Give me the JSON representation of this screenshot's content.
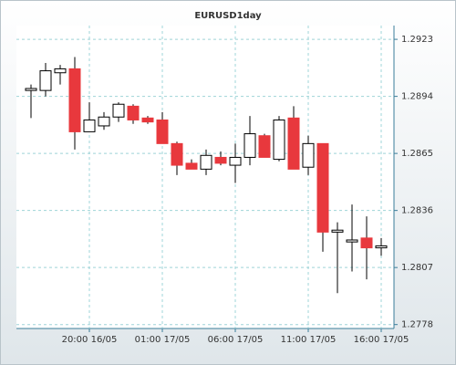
{
  "chart_data": {
    "type": "candlestick",
    "title": "EURUSD1day",
    "categories": [
      null,
      null,
      null,
      null,
      "20:00 16/05",
      null,
      null,
      null,
      null,
      "01:00 17/05",
      null,
      null,
      null,
      null,
      "06:00 17/05",
      null,
      null,
      null,
      null,
      "11:00 17/05",
      null,
      null,
      null,
      null,
      "16:00 17/05"
    ],
    "open": [
      1.2897,
      1.2897,
      1.2906,
      1.2908,
      1.2876,
      1.2879,
      1.28835,
      1.2889,
      1.2883,
      1.2882,
      1.287,
      1.286,
      1.2857,
      1.2863,
      1.2859,
      1.2863,
      1.2874,
      1.2862,
      1.2883,
      1.2858,
      1.287,
      1.2825,
      1.282,
      1.2822,
      1.2817
    ],
    "high": [
      1.29,
      1.2911,
      1.291,
      1.2914,
      1.2891,
      1.2886,
      1.2891,
      1.289,
      1.2884,
      1.2886,
      1.2871,
      1.2862,
      1.2867,
      1.2866,
      1.287,
      1.2884,
      1.2875,
      1.2884,
      1.2889,
      1.2874,
      1.287,
      1.283,
      1.2839,
      1.2833,
      1.2822
    ],
    "low": [
      1.2883,
      1.2894,
      1.29,
      1.2867,
      1.2876,
      1.2877,
      1.2881,
      1.288,
      1.288,
      1.287,
      1.2854,
      1.2857,
      1.2854,
      1.2859,
      1.285,
      1.2859,
      1.2863,
      1.2861,
      1.2857,
      1.2854,
      1.2815,
      1.2794,
      1.2805,
      1.2801,
      1.2813
    ],
    "close": [
      1.2898,
      1.2907,
      1.2908,
      1.2876,
      1.2882,
      1.28835,
      1.289,
      1.2882,
      1.2881,
      1.287,
      1.2859,
      1.2857,
      1.2864,
      1.286,
      1.2863,
      1.2875,
      1.2863,
      1.2882,
      1.2857,
      1.287,
      1.2825,
      1.2826,
      1.2821,
      1.2817,
      1.2818
    ],
    "up_color": "#ffffff",
    "down_color": "#e8383d",
    "ylim": [
      1.2776,
      1.293
    ],
    "yticks": [
      1.2778,
      1.2807,
      1.2836,
      1.2865,
      1.2894,
      1.2923
    ],
    "grid": true
  }
}
